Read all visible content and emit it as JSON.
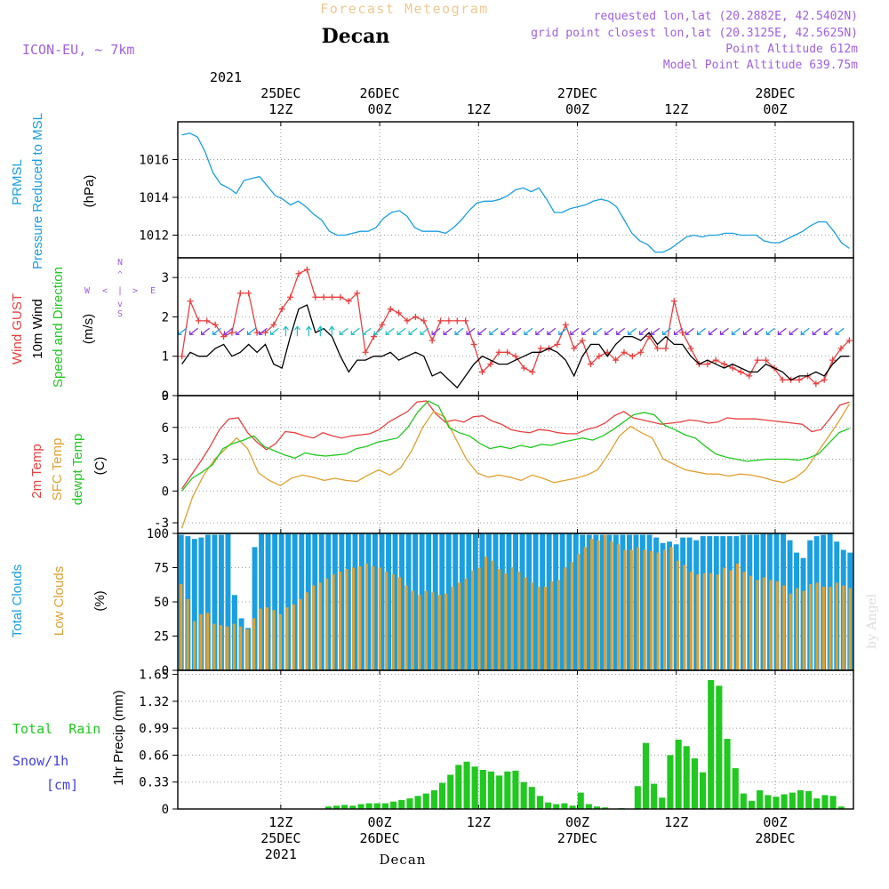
{
  "header": {
    "subtitle": "Forecast Meteogram",
    "station": "Decan",
    "model": "ICON-EU, ~ 7km",
    "requested": "requested lon,lat (20.2882E, 42.5402N)",
    "gridpoint": "grid point closest lon,lat (20.3125E, 42.5625N)",
    "point_alt": "Point Altitude 612m",
    "model_alt": "Model Point Altitude 639.75m",
    "bottom_label": "Decan",
    "watermark": "by Angel"
  },
  "time_axis": {
    "top_year": "2021",
    "ticks": [
      {
        "h": 12,
        "l1": "25DEC",
        "l2": "12Z"
      },
      {
        "h": 24,
        "l1": "26DEC",
        "l2": "00Z"
      },
      {
        "h": 36,
        "l1": "",
        "l2": "12Z"
      },
      {
        "h": 48,
        "l1": "27DEC",
        "l2": "00Z"
      },
      {
        "h": 60,
        "l1": "",
        "l2": "12Z"
      },
      {
        "h": 72,
        "l1": "28DEC",
        "l2": "00Z"
      }
    ],
    "bottom_ticks": [
      {
        "h": 12,
        "l1": "12Z",
        "l2": "25DEC",
        "l3": "2021"
      },
      {
        "h": 24,
        "l1": "00Z",
        "l2": "26DEC",
        "l3": ""
      },
      {
        "h": 36,
        "l1": "12Z",
        "l2": "",
        "l3": ""
      },
      {
        "h": 48,
        "l1": "00Z",
        "l2": "27DEC",
        "l3": ""
      },
      {
        "h": 60,
        "l1": "12Z",
        "l2": "",
        "l3": ""
      },
      {
        "h": 72,
        "l1": "00Z",
        "l2": "28DEC",
        "l3": ""
      }
    ]
  },
  "chart_data": [
    {
      "type": "line",
      "ylabels": [
        "PRMSL",
        "Pressure Reduced to MSL",
        "(hPa)"
      ],
      "ylim": [
        1010.8,
        1018
      ],
      "yticks": [
        1012,
        1014,
        1016
      ],
      "color": "#1a9fe0",
      "series": [
        {
          "name": "PRMSL",
          "values": [
            1017.3,
            1017.4,
            1017.2,
            1016.4,
            1015.3,
            1014.7,
            1014.5,
            1014.2,
            1014.9,
            1015.0,
            1015.1,
            1014.6,
            1014.1,
            1013.9,
            1013.6,
            1013.8,
            1013.5,
            1013.1,
            1012.8,
            1012.2,
            1012.0,
            1012.0,
            1012.1,
            1012.2,
            1012.2,
            1012.4,
            1012.9,
            1013.2,
            1013.3,
            1013.0,
            1012.4,
            1012.2,
            1012.2,
            1012.2,
            1012.1,
            1012.4,
            1012.8,
            1013.3,
            1013.7,
            1013.8,
            1013.8,
            1013.9,
            1014.1,
            1014.4,
            1014.5,
            1014.3,
            1014.5,
            1013.9,
            1013.2,
            1013.2,
            1013.4,
            1013.5,
            1013.6,
            1013.8,
            1013.9,
            1013.8,
            1013.5,
            1012.8,
            1012.1,
            1011.7,
            1011.5,
            1011.1,
            1011.1,
            1011.3,
            1011.6,
            1011.9,
            1012.0,
            1011.9,
            1012.0,
            1012.0,
            1012.1,
            1012.1,
            1012.0,
            1012.0,
            1012.0,
            1011.7,
            1011.6,
            1011.6,
            1011.8,
            1012.0,
            1012.2,
            1012.5,
            1012.7,
            1012.7,
            1012.2,
            1011.6,
            1011.3
          ]
        }
      ]
    },
    {
      "type": "line",
      "ylabels": [
        "Wind GUST",
        "10m Wind",
        "Speed and Direction",
        "(m/s)"
      ],
      "compass": {
        "n": "N",
        "s": "S",
        "w": "W",
        "e": "E"
      },
      "ylim": [
        0,
        3.5
      ],
      "yticks": [
        0,
        1,
        2,
        3
      ],
      "series": [
        {
          "name": "Wind GUST",
          "color": "#e84040",
          "values": [
            1.0,
            2.4,
            1.9,
            1.9,
            1.8,
            1.5,
            1.6,
            2.6,
            2.6,
            1.6,
            1.6,
            1.8,
            2.2,
            2.5,
            3.1,
            3.2,
            2.5,
            2.5,
            2.5,
            2.5,
            2.4,
            2.6,
            1.1,
            1.5,
            1.8,
            2.2,
            2.1,
            1.9,
            2.0,
            1.9,
            1.4,
            1.9,
            1.9,
            1.9,
            1.9,
            1.3,
            0.6,
            0.8,
            1.1,
            1.1,
            1.0,
            0.7,
            0.6,
            1.2,
            1.2,
            1.3,
            1.8,
            1.2,
            1.4,
            0.8,
            1.0,
            1.1,
            0.9,
            1.1,
            1.0,
            1.1,
            1.5,
            1.2,
            1.2,
            2.4,
            1.6,
            1.2,
            0.8,
            0.8,
            0.9,
            0.8,
            0.7,
            0.6,
            0.5,
            0.9,
            0.9,
            0.7,
            0.4,
            0.4,
            0.4,
            0.5,
            0.3,
            0.4,
            0.9,
            1.2,
            1.4
          ]
        },
        {
          "name": "10m Wind",
          "color": "#000000",
          "values": [
            0.8,
            1.1,
            1.0,
            1.0,
            1.2,
            1.3,
            1.0,
            1.1,
            1.3,
            1.1,
            1.3,
            0.8,
            0.7,
            1.5,
            2.2,
            2.3,
            1.6,
            1.7,
            1.5,
            1.0,
            0.6,
            0.9,
            0.9,
            1.0,
            1.0,
            1.1,
            0.9,
            1.0,
            1.1,
            1.0,
            0.5,
            0.6,
            0.4,
            0.2,
            0.5,
            0.8,
            1.0,
            0.9,
            0.8,
            0.8,
            0.9,
            1.0,
            1.1,
            1.1,
            1.2,
            1.1,
            0.9,
            0.5,
            1.0,
            1.3,
            1.3,
            1.0,
            1.3,
            1.5,
            1.5,
            1.4,
            1.6,
            1.3,
            1.5,
            1.3,
            1.3,
            1.0,
            0.8,
            0.9,
            0.8,
            0.7,
            0.8,
            0.7,
            0.6,
            0.6,
            0.8,
            0.7,
            0.6,
            0.4,
            0.5,
            0.5,
            0.6,
            0.5,
            0.8,
            1.0,
            1.0
          ]
        }
      ]
    },
    {
      "type": "line",
      "ylabels": [
        "2m Temp",
        "SFC Temp",
        "dewpt Temp",
        "(C)"
      ],
      "ylim": [
        -4,
        9
      ],
      "yticks": [
        -3,
        0,
        3,
        6,
        9
      ],
      "series": [
        {
          "name": "2m Temp",
          "color": "#e84040",
          "values": [
            0.2,
            1.5,
            2.8,
            4.2,
            5.8,
            6.8,
            6.9,
            5.5,
            4.6,
            3.9,
            4.5,
            5.6,
            5.5,
            5.2,
            5.0,
            5.5,
            5.2,
            5.0,
            5.2,
            5.3,
            5.4,
            5.8,
            6.5,
            7.0,
            7.5,
            8.4,
            8.5,
            7.3,
            6.5,
            6.7,
            6.5,
            7.0,
            7.1,
            6.6,
            6.3,
            5.8,
            5.6,
            5.5,
            5.8,
            5.7,
            5.5,
            5.4,
            5.4,
            5.8,
            6.0,
            6.4,
            7.1,
            7.5,
            6.9,
            6.7,
            6.5,
            6.3,
            6.4,
            6.5,
            6.7,
            6.6,
            6.4,
            6.5,
            6.9,
            6.8,
            6.8,
            6.8,
            6.7,
            6.6,
            6.5,
            6.4,
            6.3,
            5.6,
            5.8,
            6.9,
            8.1,
            8.4
          ]
        },
        {
          "name": "SFC Temp",
          "color": "#e0a030",
          "values": [
            -3.5,
            -0.5,
            1.5,
            3.0,
            4.0,
            5.0,
            4.0,
            1.7,
            1.0,
            0.5,
            1.2,
            1.5,
            1.3,
            1.0,
            1.2,
            1.0,
            0.9,
            1.5,
            2.0,
            1.5,
            2.2,
            3.8,
            6.0,
            7.5,
            7.0,
            5.0,
            3.0,
            1.7,
            1.3,
            1.5,
            1.3,
            1.0,
            1.5,
            1.2,
            0.8,
            1.0,
            1.2,
            1.5,
            2.0,
            3.5,
            5.2,
            6.1,
            5.5,
            5.0,
            3.0,
            2.5,
            2.0,
            1.8,
            1.6,
            1.6,
            1.4,
            1.6,
            1.5,
            1.3,
            1.0,
            0.8,
            1.2,
            2.0,
            3.5,
            5.0,
            6.5,
            8.2
          ]
        },
        {
          "name": "dewpt Temp",
          "color": "#20c820",
          "values": [
            0.0,
            1.2,
            1.8,
            2.5,
            4.0,
            4.5,
            4.8,
            5.2,
            4.2,
            3.8,
            3.4,
            3.1,
            3.6,
            3.4,
            3.3,
            3.4,
            3.5,
            4.0,
            4.2,
            4.6,
            4.8,
            5.0,
            6.0,
            7.5,
            8.5,
            8.0,
            6.0,
            5.5,
            5.2,
            4.5,
            4.0,
            4.2,
            4.0,
            4.3,
            4.1,
            4.4,
            4.3,
            4.6,
            4.8,
            5.0,
            4.8,
            5.2,
            5.8,
            6.5,
            7.2,
            7.4,
            7.2,
            6.2,
            5.8,
            5.3,
            5.0,
            4.2,
            3.5,
            3.2,
            3.0,
            2.8,
            2.9,
            3.0,
            3.0,
            3.0,
            2.9,
            3.1,
            3.5,
            4.5,
            5.5,
            5.9
          ]
        }
      ]
    },
    {
      "type": "bar",
      "ylabels": [
        "Total Clouds",
        "Low Clouds",
        "(%)"
      ],
      "ylim": [
        0,
        100
      ],
      "yticks": [
        0,
        25,
        50,
        75,
        100
      ],
      "series": [
        {
          "name": "Total Clouds",
          "color": "#1a9fe0",
          "values": [
            99,
            98,
            96,
            97,
            99,
            99,
            99,
            100,
            55,
            38,
            31,
            90,
            100,
            100,
            100,
            100,
            100,
            100,
            100,
            100,
            100,
            100,
            100,
            100,
            100,
            100,
            100,
            100,
            100,
            100,
            100,
            100,
            100,
            100,
            100,
            100,
            100,
            100,
            100,
            100,
            100,
            100,
            100,
            100,
            100,
            100,
            100,
            100,
            100,
            100,
            100,
            100,
            100,
            100,
            100,
            100,
            100,
            100,
            100,
            100,
            99,
            99,
            99,
            99,
            99,
            99,
            99,
            99,
            99,
            99,
            99,
            97,
            93,
            94,
            92,
            97,
            97,
            95,
            98,
            98,
            98,
            98,
            98,
            98,
            99,
            99,
            99,
            100,
            100,
            100,
            100,
            95,
            86,
            82,
            95,
            98,
            99,
            100,
            94,
            88,
            86
          ]
        },
        {
          "name": "Low Clouds",
          "color": "#e0a030",
          "values": [
            63,
            52,
            36,
            41,
            42,
            34,
            33,
            32,
            34,
            32,
            30,
            38,
            45,
            46,
            44,
            41,
            46,
            48,
            52,
            57,
            62,
            64,
            67,
            70,
            72,
            74,
            75,
            76,
            78,
            76,
            75,
            72,
            70,
            68,
            62,
            58,
            55,
            58,
            57,
            55,
            56,
            61,
            64,
            67,
            73,
            75,
            83,
            80,
            74,
            71,
            75,
            72,
            68,
            64,
            61,
            61,
            65,
            66,
            75,
            79,
            85,
            90,
            96,
            95,
            99,
            94,
            92,
            88,
            88,
            90,
            88,
            87,
            86,
            88,
            90,
            80,
            77,
            72,
            70,
            71,
            71,
            70,
            75,
            73,
            78,
            72,
            69,
            66,
            68,
            66,
            65,
            62,
            56,
            60,
            58,
            63,
            64,
            61,
            61,
            64,
            62,
            60
          ]
        }
      ]
    },
    {
      "type": "bar",
      "ylabels": [
        "1hr Precip (mm)"
      ],
      "legend": [
        "Total  Rain",
        "Snow/1h",
        "[cm]"
      ],
      "ylim": [
        0,
        1.7
      ],
      "yticks": [
        0,
        0.33,
        0.66,
        0.99,
        1.32,
        1.65
      ],
      "color": "#20c820",
      "series": [
        {
          "name": "Total Rain",
          "values": [
            0,
            0,
            0,
            0,
            0,
            0,
            0,
            0,
            0,
            0,
            0,
            0,
            0,
            0,
            0,
            0,
            0,
            0,
            0.03,
            0.04,
            0.05,
            0.04,
            0.06,
            0.07,
            0.07,
            0.07,
            0.09,
            0.11,
            0.13,
            0.16,
            0.19,
            0.23,
            0.32,
            0.42,
            0.54,
            0.58,
            0.52,
            0.48,
            0.46,
            0.41,
            0.46,
            0.47,
            0.33,
            0.27,
            0.16,
            0.08,
            0.06,
            0.07,
            0.04,
            0.2,
            0.06,
            0.03,
            0.02,
            0,
            0.01,
            0,
            0.28,
            0.81,
            0.31,
            0.14,
            0.66,
            0.85,
            0.77,
            0.62,
            0.45,
            1.58,
            1.51,
            0.86,
            0.5,
            0.19,
            0.1,
            0.23,
            0.17,
            0.15,
            0.18,
            0.2,
            0.23,
            0.22,
            0.13,
            0.17,
            0.16,
            0.03,
            0
          ]
        }
      ]
    }
  ]
}
